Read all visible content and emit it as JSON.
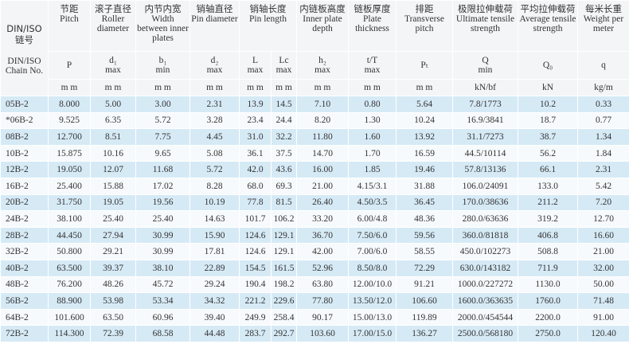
{
  "table": {
    "chain_header": {
      "zh": "DIN/ISO 链号",
      "en": "DIN/ISO Chain No."
    },
    "columns": [
      {
        "zh": "节距",
        "en": "Pitch",
        "symbol": "P",
        "unit": "m m"
      },
      {
        "zh": "滚子直径",
        "en": "Roller diameter",
        "symbol": "d₁",
        "limit": "max",
        "unit": "m m"
      },
      {
        "zh": "内节内宽",
        "en": "Width between inner plates",
        "symbol": "b₁",
        "limit": "min",
        "unit": "m m"
      },
      {
        "zh": "销轴直径",
        "en": "Pin diameter",
        "symbol": "d₂",
        "limit": "max",
        "unit": "m m"
      },
      {
        "zh": "销轴长度",
        "en": "Pin length",
        "sub": [
          {
            "symbol": "L",
            "limit": "max",
            "unit": "m m"
          },
          {
            "symbol": "Lc",
            "limit": "max",
            "unit": "m m"
          }
        ]
      },
      {
        "zh": "内链板高度",
        "en": "Inner plate depth",
        "symbol": "h₂",
        "limit": "max",
        "unit": "m m"
      },
      {
        "zh": "链板厚度",
        "en": "Plate thickness",
        "symbol": "t/T",
        "limit": "max",
        "unit": "m m"
      },
      {
        "zh": "排距",
        "en": "Transverse pitch",
        "symbol": "Pₜ",
        "unit": "m m"
      },
      {
        "zh": "极限拉伸载荷",
        "en": "Ultimate tensile strength",
        "symbol": "Q",
        "limit": "min",
        "unit": "kN/bf"
      },
      {
        "zh": "平均拉伸载荷",
        "en": "Average tensile strength",
        "symbol": "Q₀",
        "unit": "kN"
      },
      {
        "zh": "每米长重",
        "en": "Weight per meter",
        "symbol": "q",
        "unit": "kg/m"
      }
    ],
    "rows": [
      [
        "05B-2",
        "8.000",
        "5.00",
        "3.00",
        "2.31",
        "13.9",
        "14.5",
        "7.10",
        "0.80",
        "5.64",
        "7.8/1773",
        "10.2",
        "0.33"
      ],
      [
        "*06B-2",
        "9.525",
        "6.35",
        "5.72",
        "3.28",
        "23.4",
        "24.4",
        "8.20",
        "1.30",
        "10.24",
        "16.9/3841",
        "18.7",
        "0.77"
      ],
      [
        "08B-2",
        "12.700",
        "8.51",
        "7.75",
        "4.45",
        "31.0",
        "32.2",
        "11.80",
        "1.60",
        "13.92",
        "31.1/7273",
        "38.7",
        "1.34"
      ],
      [
        "10B-2",
        "15.875",
        "10.16",
        "9.65",
        "5.08",
        "36.1",
        "37.5",
        "14.70",
        "1.70",
        "16.59",
        "44.5/10114",
        "56.2",
        "1.84"
      ],
      [
        "12B-2",
        "19.050",
        "12.07",
        "11.68",
        "5.72",
        "42.0",
        "43.6",
        "16.00",
        "1.85",
        "19.46",
        "57.8/13136",
        "66.1",
        "2.31"
      ],
      [
        "16B-2",
        "25.400",
        "15.88",
        "17.02",
        "8.28",
        "68.0",
        "69.3",
        "21.00",
        "4.15/3.1",
        "31.88",
        "106.0/24091",
        "133.0",
        "5.42"
      ],
      [
        "20B-2",
        "31.750",
        "19.05",
        "19.56",
        "10.19",
        "77.8",
        "81.5",
        "26.40",
        "4.50/3.5",
        "36.45",
        "170.0/38636",
        "211.2",
        "7.20"
      ],
      [
        "24B-2",
        "38.100",
        "25.40",
        "25.40",
        "14.63",
        "101.7",
        "106.2",
        "33.20",
        "6.00/4.8",
        "48.36",
        "280.0/63636",
        "319.2",
        "12.70"
      ],
      [
        "28B-2",
        "44.450",
        "27.94",
        "30.99",
        "15.90",
        "124.6",
        "129.1",
        "36.70",
        "7.50/6.0",
        "59.56",
        "360.0/81818",
        "406.8",
        "16.60"
      ],
      [
        "32B-2",
        "50.800",
        "29.21",
        "30.99",
        "17.81",
        "124.6",
        "129.1",
        "42.00",
        "7.00/6.0",
        "58.55",
        "450.0/102273",
        "508.8",
        "21.00"
      ],
      [
        "40B-2",
        "63.500",
        "39.37",
        "38.10",
        "22.89",
        "154.5",
        "161.5",
        "52.96",
        "8.50/8.0",
        "72.29",
        "630.0/143182",
        "711.9",
        "32.00"
      ],
      [
        "48B-2",
        "76.200",
        "48.26",
        "45.72",
        "29.24",
        "190.4",
        "198.2",
        "63.80",
        "12.00/10.0",
        "91.21",
        "1000.0/227272",
        "1130.0",
        "50.00"
      ],
      [
        "56B-2",
        "88.900",
        "53.98",
        "53.34",
        "34.32",
        "221.2",
        "229.6",
        "77.80",
        "13.50/12.0",
        "106.60",
        "1600.0/363635",
        "1760.0",
        "71.48"
      ],
      [
        "64B-2",
        "101.600",
        "63.50",
        "60.96",
        "39.40",
        "249.9",
        "258.4",
        "90.17",
        "15.00/13.0",
        "119.89",
        "2000.0/454544",
        "2200.0",
        "91.00"
      ],
      [
        "72B-2",
        "114.300",
        "72.39",
        "68.58",
        "44.48",
        "283.7",
        "292.7",
        "103.60",
        "17.00/15.0",
        "136.27",
        "2500.0/568180",
        "2750.0",
        "120.40"
      ]
    ]
  }
}
